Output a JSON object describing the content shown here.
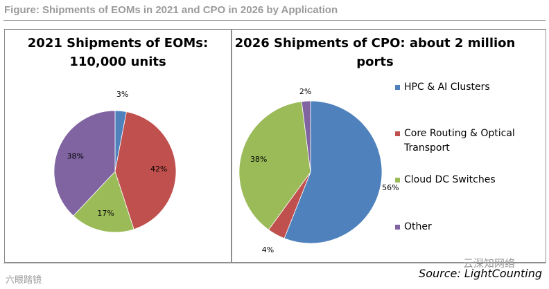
{
  "figure_title": "Figure: Shipments of EOMs in 2021 and CPO in 2026 by Application",
  "source": "Source: LightCounting",
  "watermarks": {
    "left": "六眼踏镜",
    "right": "云深知网络"
  },
  "chart_data": [
    {
      "type": "pie",
      "title_line1": "2021 Shipments of EOMs:",
      "title_line2": "110,000 units",
      "start_angle_deg": 0,
      "direction": "clockwise",
      "slices": [
        {
          "label": "HPC & AI Clusters",
          "value": 3,
          "display": "3%",
          "color": "#4f81bd"
        },
        {
          "label": "Core Routing & Optical Transport",
          "value": 42,
          "display": "42%",
          "color": "#c0504d"
        },
        {
          "label": "Cloud DC Switches",
          "value": 17,
          "display": "17%",
          "color": "#9bbb59"
        },
        {
          "label": "Other",
          "value": 38,
          "display": "38%",
          "color": "#8064a2"
        }
      ]
    },
    {
      "type": "pie",
      "title_line1": "2026 Shipments of CPO: about 2 million",
      "title_line2": "ports",
      "start_angle_deg": 0,
      "direction": "clockwise",
      "slices": [
        {
          "label": "HPC & AI Clusters",
          "value": 56,
          "display": "56%",
          "color": "#4f81bd"
        },
        {
          "label": "Core Routing & Optical Transport",
          "value": 4,
          "display": "4%",
          "color": "#c0504d"
        },
        {
          "label": "Cloud DC Switches",
          "value": 38,
          "display": "38%",
          "color": "#9bbb59"
        },
        {
          "label": "Other",
          "value": 2,
          "display": "2%",
          "color": "#8064a2"
        }
      ]
    }
  ],
  "legend": [
    {
      "lines": [
        "HPC & AI Clusters"
      ],
      "color": "#4f81bd"
    },
    {
      "lines": [
        "Core Routing & Optical",
        "Transport"
      ],
      "color": "#c0504d"
    },
    {
      "lines": [
        "Cloud DC Switches"
      ],
      "color": "#9bbb59"
    },
    {
      "lines": [
        "Other"
      ],
      "color": "#8064a2"
    }
  ]
}
